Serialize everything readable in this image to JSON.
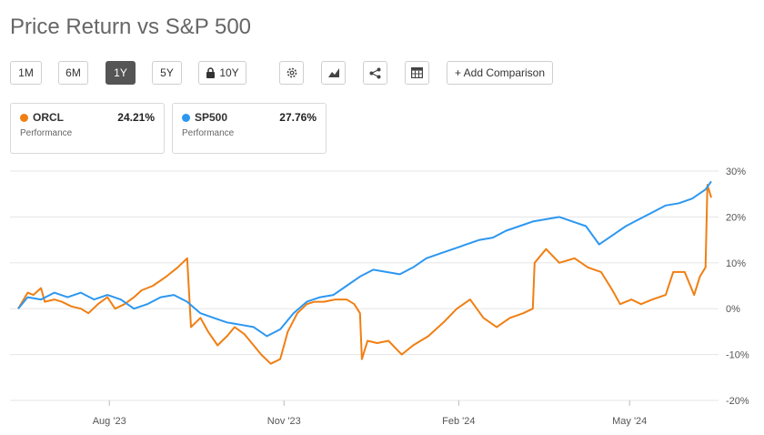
{
  "title": "Price Return vs S&P 500",
  "toolbar": {
    "ranges": [
      "1M",
      "6M",
      "1Y",
      "5Y",
      "10Y"
    ],
    "active": "1Y",
    "add_comparison": "+ Add Comparison"
  },
  "cards": [
    {
      "ticker": "ORCL",
      "value": "24.21%",
      "label": "Performance",
      "color": "#f07f13"
    },
    {
      "ticker": "SP500",
      "value": "27.76%",
      "label": "Performance",
      "color": "#2d97f0"
    }
  ],
  "colors": {
    "orcl": "#f07f13",
    "sp500": "#2d97f0",
    "grid": "#e5e5e5",
    "active_button": "#555555"
  },
  "icons": [
    "lock-icon",
    "gear-icon",
    "chart-type-icon",
    "share-icon",
    "table-icon"
  ],
  "chart_data": {
    "type": "line",
    "x_ticks": [
      "Aug '23",
      "Nov '23",
      "Feb '24",
      "May '24"
    ],
    "y_ticks": [
      "30%",
      "20%",
      "10%",
      "0%",
      "-10%",
      "-20%"
    ],
    "ylim": [
      -20,
      30
    ],
    "xlim": [
      "2023-06-14",
      "2024-06-13"
    ],
    "grid": true,
    "series": [
      {
        "name": "ORCL",
        "color": "#f07f13",
        "points": [
          [
            "2023-06-14",
            0
          ],
          [
            "2023-06-19",
            3.5
          ],
          [
            "2023-06-22",
            3
          ],
          [
            "2023-06-26",
            4.5
          ],
          [
            "2023-06-28",
            1.5
          ],
          [
            "2023-07-03",
            2
          ],
          [
            "2023-07-07",
            1.5
          ],
          [
            "2023-07-12",
            0.5
          ],
          [
            "2023-07-17",
            0
          ],
          [
            "2023-07-21",
            -1
          ],
          [
            "2023-07-26",
            1
          ],
          [
            "2023-07-31",
            2.5
          ],
          [
            "2023-08-04",
            0
          ],
          [
            "2023-08-09",
            1
          ],
          [
            "2023-08-14",
            2.5
          ],
          [
            "2023-08-18",
            4
          ],
          [
            "2023-08-24",
            5
          ],
          [
            "2023-08-31",
            7
          ],
          [
            "2023-09-06",
            9
          ],
          [
            "2023-09-11",
            11
          ],
          [
            "2023-09-13",
            -4
          ],
          [
            "2023-09-18",
            -2
          ],
          [
            "2023-09-22",
            -5
          ],
          [
            "2023-09-27",
            -8
          ],
          [
            "2023-10-02",
            -6
          ],
          [
            "2023-10-06",
            -4
          ],
          [
            "2023-10-11",
            -5.5
          ],
          [
            "2023-10-16",
            -8
          ],
          [
            "2023-10-20",
            -10
          ],
          [
            "2023-10-25",
            -12
          ],
          [
            "2023-10-30",
            -11
          ],
          [
            "2023-11-03",
            -5
          ],
          [
            "2023-11-08",
            -1
          ],
          [
            "2023-11-13",
            1
          ],
          [
            "2023-11-17",
            1.5
          ],
          [
            "2023-11-22",
            1.5
          ],
          [
            "2023-11-28",
            2
          ],
          [
            "2023-12-04",
            2
          ],
          [
            "2023-12-08",
            1
          ],
          [
            "2023-12-11",
            -1
          ],
          [
            "2023-12-12",
            -11
          ],
          [
            "2023-12-15",
            -7
          ],
          [
            "2023-12-20",
            -7.5
          ],
          [
            "2023-12-26",
            -7
          ],
          [
            "2024-01-02",
            -10
          ],
          [
            "2024-01-08",
            -8
          ],
          [
            "2024-01-16",
            -6
          ],
          [
            "2024-01-24",
            -3
          ],
          [
            "2024-01-31",
            0
          ],
          [
            "2024-02-07",
            2
          ],
          [
            "2024-02-14",
            -2
          ],
          [
            "2024-02-21",
            -4
          ],
          [
            "2024-02-28",
            -2
          ],
          [
            "2024-03-06",
            -1
          ],
          [
            "2024-03-11",
            0
          ],
          [
            "2024-03-12",
            10
          ],
          [
            "2024-03-18",
            13
          ],
          [
            "2024-03-25",
            10
          ],
          [
            "2024-04-02",
            11
          ],
          [
            "2024-04-09",
            9
          ],
          [
            "2024-04-16",
            8
          ],
          [
            "2024-04-22",
            4
          ],
          [
            "2024-04-26",
            1
          ],
          [
            "2024-05-02",
            2
          ],
          [
            "2024-05-07",
            1
          ],
          [
            "2024-05-13",
            2
          ],
          [
            "2024-05-20",
            3
          ],
          [
            "2024-05-24",
            8
          ],
          [
            "2024-05-30",
            8
          ],
          [
            "2024-06-04",
            3
          ],
          [
            "2024-06-07",
            7
          ],
          [
            "2024-06-10",
            9
          ],
          [
            "2024-06-11",
            27
          ],
          [
            "2024-06-13",
            24.21
          ]
        ]
      },
      {
        "name": "SP500",
        "color": "#2d97f0",
        "points": [
          [
            "2023-06-14",
            0
          ],
          [
            "2023-06-19",
            2.5
          ],
          [
            "2023-06-26",
            2
          ],
          [
            "2023-07-03",
            3.5
          ],
          [
            "2023-07-10",
            2.5
          ],
          [
            "2023-07-17",
            3.5
          ],
          [
            "2023-07-24",
            2
          ],
          [
            "2023-07-31",
            3
          ],
          [
            "2023-08-07",
            2
          ],
          [
            "2023-08-14",
            0
          ],
          [
            "2023-08-21",
            1
          ],
          [
            "2023-08-28",
            2.5
          ],
          [
            "2023-09-04",
            3
          ],
          [
            "2023-09-11",
            1.5
          ],
          [
            "2023-09-18",
            -1
          ],
          [
            "2023-09-25",
            -2
          ],
          [
            "2023-10-02",
            -3
          ],
          [
            "2023-10-09",
            -3.5
          ],
          [
            "2023-10-16",
            -4
          ],
          [
            "2023-10-23",
            -6
          ],
          [
            "2023-10-30",
            -4.5
          ],
          [
            "2023-11-06",
            -1
          ],
          [
            "2023-11-13",
            1.5
          ],
          [
            "2023-11-20",
            2.5
          ],
          [
            "2023-11-27",
            3
          ],
          [
            "2023-12-04",
            5
          ],
          [
            "2023-12-11",
            7
          ],
          [
            "2023-12-18",
            8.5
          ],
          [
            "2023-12-25",
            8
          ],
          [
            "2024-01-01",
            7.5
          ],
          [
            "2024-01-08",
            9
          ],
          [
            "2024-01-15",
            11
          ],
          [
            "2024-01-22",
            12
          ],
          [
            "2024-01-29",
            13
          ],
          [
            "2024-02-05",
            14
          ],
          [
            "2024-02-12",
            15
          ],
          [
            "2024-02-19",
            15.5
          ],
          [
            "2024-02-26",
            17
          ],
          [
            "2024-03-04",
            18
          ],
          [
            "2024-03-11",
            19
          ],
          [
            "2024-03-18",
            19.5
          ],
          [
            "2024-03-25",
            20
          ],
          [
            "2024-04-01",
            19
          ],
          [
            "2024-04-08",
            18
          ],
          [
            "2024-04-15",
            14
          ],
          [
            "2024-04-22",
            16
          ],
          [
            "2024-04-29",
            18
          ],
          [
            "2024-05-06",
            19.5
          ],
          [
            "2024-05-13",
            21
          ],
          [
            "2024-05-20",
            22.5
          ],
          [
            "2024-05-27",
            23
          ],
          [
            "2024-06-03",
            24
          ],
          [
            "2024-06-10",
            26
          ],
          [
            "2024-06-13",
            27.76
          ]
        ]
      }
    ]
  }
}
